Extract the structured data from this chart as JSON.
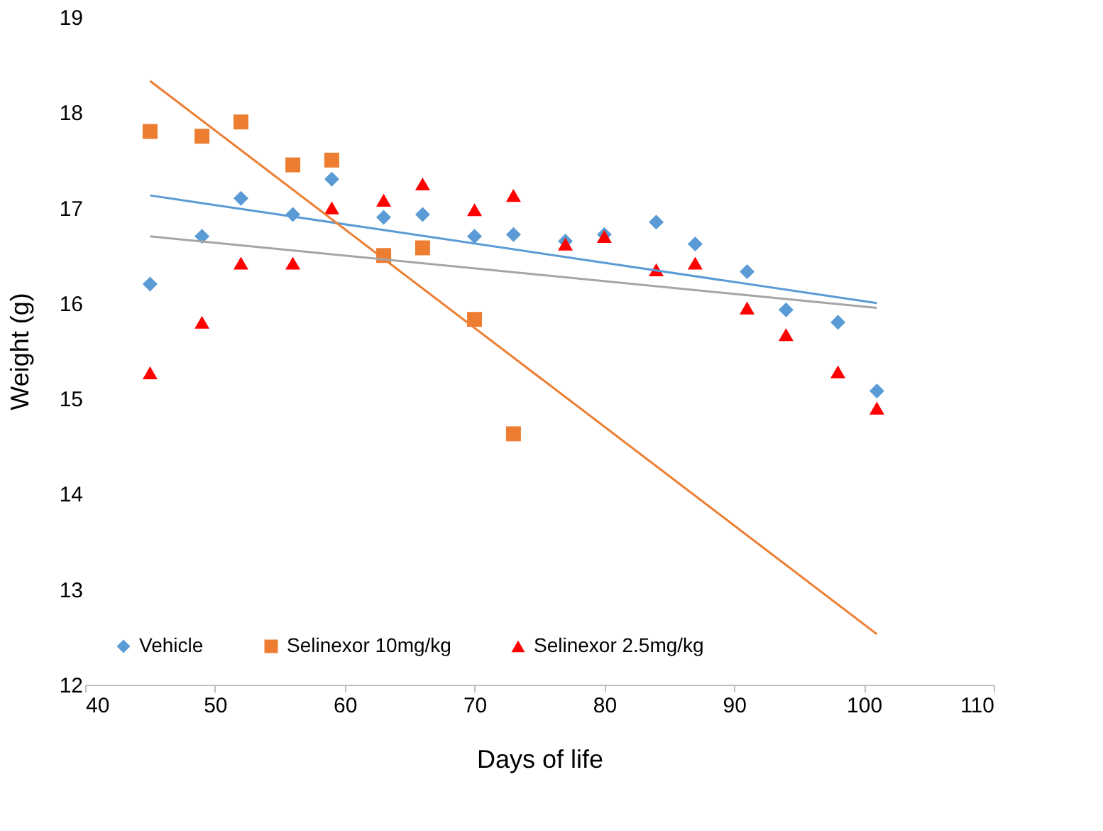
{
  "chart_data": {
    "type": "scatter",
    "xlabel": "Days of life",
    "ylabel": "Weight (g)",
    "xlim": [
      40,
      110
    ],
    "xticks": [
      40,
      50,
      60,
      70,
      80,
      90,
      100,
      110
    ],
    "ylim": [
      12,
      19
    ],
    "yticks": [
      12,
      13,
      14,
      15,
      16,
      17,
      18,
      19
    ],
    "grid": false,
    "legend": "bottom left",
    "series": [
      {
        "name": "Vehicle",
        "marker": "diamond",
        "color": "#5b9bd5",
        "x": [
          45,
          49,
          52,
          56,
          59,
          63,
          66,
          70,
          73,
          77,
          80,
          84,
          87,
          91,
          94,
          98,
          101
        ],
        "values": [
          16.2,
          16.7,
          17.1,
          16.93,
          17.3,
          16.9,
          16.93,
          16.7,
          16.72,
          16.65,
          16.72,
          16.85,
          16.62,
          16.33,
          15.93,
          15.8,
          15.08
        ]
      },
      {
        "name": "Selinexor 10mg/kg",
        "marker": "square",
        "color": "#ed7d31",
        "x": [
          45,
          49,
          52,
          56,
          59,
          63,
          66,
          70,
          73
        ],
        "values": [
          17.8,
          17.75,
          17.9,
          17.45,
          17.5,
          16.5,
          16.58,
          15.83,
          14.63
        ]
      },
      {
        "name": "Selinexor 2.5mg/kg",
        "marker": "triangle",
        "color": "#ff0000",
        "x": [
          45,
          49,
          52,
          56,
          59,
          63,
          66,
          70,
          73,
          77,
          80,
          84,
          87,
          91,
          94,
          98,
          101
        ],
        "values": [
          15.27,
          15.8,
          16.42,
          16.42,
          17.0,
          17.08,
          17.25,
          16.98,
          17.13,
          16.62,
          16.7,
          16.35,
          16.42,
          15.95,
          15.67,
          15.28,
          14.9
        ]
      },
      {
        "type": "line",
        "line_style": "solid",
        "color": "#5b9bd5",
        "x": [
          45,
          101
        ],
        "values": [
          17.13,
          16.0
        ]
      },
      {
        "type": "line",
        "line_style": "solid",
        "color": "#ed7d31",
        "x": [
          45,
          101
        ],
        "values": [
          18.33,
          12.53
        ]
      },
      {
        "type": "line",
        "line_style": "solid",
        "color": "#a5a5a5",
        "x": [
          45,
          101
        ],
        "values": [
          16.7,
          15.95
        ]
      }
    ]
  }
}
